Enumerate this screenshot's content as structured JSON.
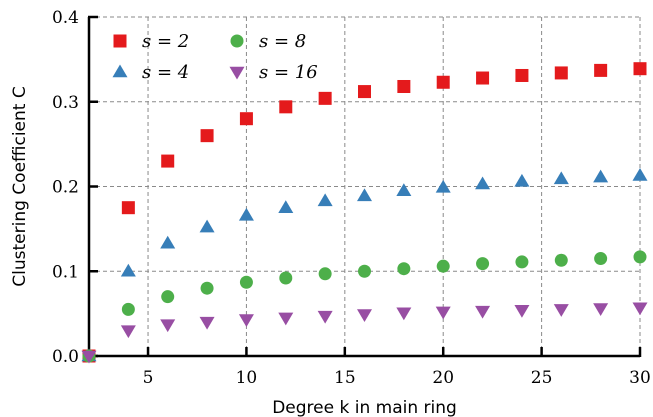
{
  "chart_data": {
    "type": "scatter",
    "title": "",
    "xlabel": "Degree k in main ring",
    "ylabel": "Clustering Coefficient C",
    "xlim": [
      2,
      30
    ],
    "ylim": [
      0,
      0.4
    ],
    "x_ticks": [
      5,
      10,
      15,
      20,
      25,
      30
    ],
    "y_ticks": [
      "0.0",
      "0.1",
      "0.2",
      "0.3",
      "0.4"
    ],
    "grid": true,
    "legend_position": "top-left",
    "x": [
      2,
      4,
      6,
      8,
      10,
      12,
      14,
      16,
      18,
      20,
      22,
      24,
      26,
      28,
      30
    ],
    "series": [
      {
        "name": "s = 2",
        "marker": "square",
        "color": "#e41a1c",
        "values": [
          0.0,
          0.175,
          0.23,
          0.26,
          0.28,
          0.294,
          0.304,
          0.312,
          0.318,
          0.323,
          0.328,
          0.331,
          0.334,
          0.337,
          0.339
        ]
      },
      {
        "name": "s = 4",
        "marker": "triangle-up",
        "color": "#377eb8",
        "values": [
          0.0,
          0.1,
          0.133,
          0.152,
          0.166,
          0.175,
          0.183,
          0.189,
          0.195,
          0.199,
          0.203,
          0.206,
          0.209,
          0.211,
          0.213
        ]
      },
      {
        "name": "s = 8",
        "marker": "circle",
        "color": "#4daf4a",
        "values": [
          0.0,
          0.055,
          0.07,
          0.08,
          0.087,
          0.092,
          0.097,
          0.1,
          0.103,
          0.106,
          0.109,
          0.111,
          0.113,
          0.115,
          0.117
        ]
      },
      {
        "name": "s = 16",
        "marker": "triangle-down",
        "color": "#984ea3",
        "values": [
          0.0,
          0.03,
          0.037,
          0.04,
          0.043,
          0.045,
          0.047,
          0.049,
          0.051,
          0.052,
          0.053,
          0.054,
          0.055,
          0.056,
          0.057
        ]
      }
    ]
  }
}
